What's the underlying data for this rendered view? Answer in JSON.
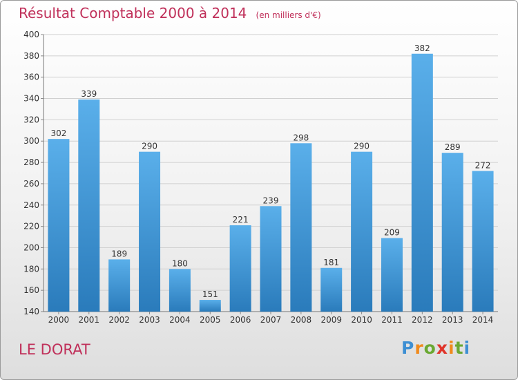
{
  "header": {
    "title": "Résultat Comptable 2000 à 2014",
    "unit": "(en milliers d'€)"
  },
  "footer": {
    "place": "LE DORAT",
    "logo": "Proxiti"
  },
  "colors": {
    "title": "#c0305a",
    "bar_top": "#5aafea",
    "bar_bottom": "#2a7bbb",
    "grid": "#d0d0d0"
  },
  "chart_data": {
    "type": "bar",
    "title": "Résultat Comptable 2000 à 2014",
    "subtitle": "(en milliers d'€)",
    "categories": [
      "2000",
      "2001",
      "2002",
      "2003",
      "2004",
      "2005",
      "2006",
      "2007",
      "2008",
      "2009",
      "2010",
      "2011",
      "2012",
      "2013",
      "2014"
    ],
    "values": [
      302,
      339,
      189,
      290,
      180,
      151,
      221,
      239,
      298,
      181,
      290,
      209,
      382,
      289,
      272
    ],
    "ylim": [
      140,
      400
    ],
    "yticks": [
      140,
      160,
      180,
      200,
      220,
      240,
      260,
      280,
      300,
      320,
      340,
      360,
      380,
      400
    ],
    "grid": true,
    "xlabel": "",
    "ylabel": ""
  }
}
